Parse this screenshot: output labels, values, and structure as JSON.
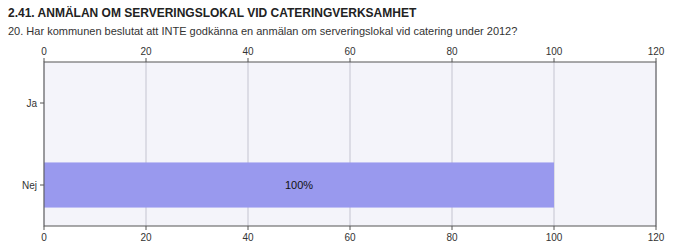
{
  "chart_data": {
    "type": "bar",
    "orientation": "horizontal",
    "title": "2.41. ANMÄLAN OM SERVERINGSLOKAL VID CATERINGVERKSAMHET",
    "subtitle": "20. Har kommunen beslutat att INTE godkänna en anmälan om serveringslokal vid catering under 2012?",
    "categories": [
      "Nej",
      "Ja"
    ],
    "values": [
      100,
      0
    ],
    "value_labels": [
      "100%",
      null
    ],
    "data_labels": true,
    "color": "#9999ee",
    "xlim": [
      0,
      120
    ],
    "xticks": [
      0,
      20,
      40,
      60,
      80,
      100,
      120
    ],
    "grid": true
  }
}
